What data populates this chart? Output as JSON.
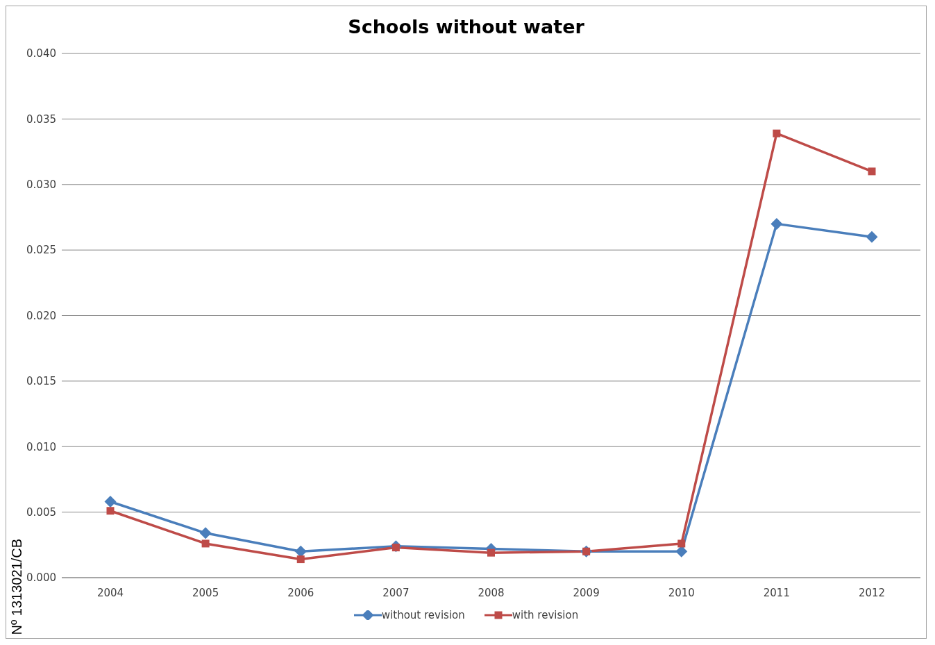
{
  "chart_data": {
    "type": "line",
    "title": "Schools without water",
    "categories": [
      "2004",
      "2005",
      "2006",
      "2007",
      "2008",
      "2009",
      "2010",
      "2011",
      "2012"
    ],
    "series": [
      {
        "name": "without revision",
        "color": "#4a7ebb",
        "marker": "diamond",
        "values": [
          0.0058,
          0.0034,
          0.002,
          0.0024,
          0.0022,
          0.002,
          0.002,
          0.027,
          0.026
        ]
      },
      {
        "name": "with revision",
        "color": "#be4b48",
        "marker": "square",
        "values": [
          0.0051,
          0.0026,
          0.0014,
          0.0023,
          0.0019,
          0.002,
          0.0026,
          0.0339,
          0.031
        ]
      }
    ],
    "ylim": [
      0,
      0.04
    ],
    "yticks": [
      {
        "value": 0,
        "label": "0.000"
      },
      {
        "value": 0.005,
        "label": "0.005"
      },
      {
        "value": 0.01,
        "label": "0.010"
      },
      {
        "value": 0.015,
        "label": "0.015"
      },
      {
        "value": 0.02,
        "label": "0.020"
      },
      {
        "value": 0.025,
        "label": "0.025"
      },
      {
        "value": 0.03,
        "label": "0.030"
      },
      {
        "value": 0.035,
        "label": "0.035"
      },
      {
        "value": 0.04,
        "label": "0.040"
      }
    ],
    "grid": "y",
    "legend": "bottom",
    "annotations": [
      "Nº 1313021/CB"
    ]
  }
}
